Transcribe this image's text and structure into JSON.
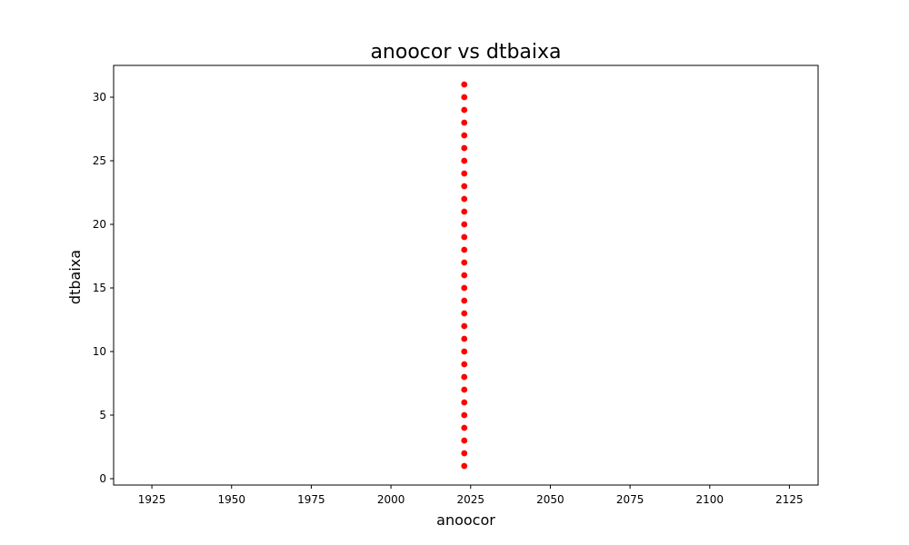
{
  "chart_data": {
    "type": "scatter",
    "title": "anoocor vs dtbaixa",
    "xlabel": "anoocor",
    "ylabel": "dtbaixa",
    "xlim": [
      1913,
      2134
    ],
    "ylim": [
      -0.5,
      32.5
    ],
    "xticks": [
      1925,
      1950,
      1975,
      2000,
      2025,
      2050,
      2075,
      2100,
      2125
    ],
    "yticks": [
      0,
      5,
      10,
      15,
      20,
      25,
      30
    ],
    "grid": false,
    "legend": "none",
    "marker_color": "#ff0000",
    "points": [
      {
        "x": 2023,
        "y": 1
      },
      {
        "x": 2023,
        "y": 2
      },
      {
        "x": 2023,
        "y": 3
      },
      {
        "x": 2023,
        "y": 4
      },
      {
        "x": 2023,
        "y": 5
      },
      {
        "x": 2023,
        "y": 6
      },
      {
        "x": 2023,
        "y": 7
      },
      {
        "x": 2023,
        "y": 8
      },
      {
        "x": 2023,
        "y": 9
      },
      {
        "x": 2023,
        "y": 10
      },
      {
        "x": 2023,
        "y": 11
      },
      {
        "x": 2023,
        "y": 12
      },
      {
        "x": 2023,
        "y": 13
      },
      {
        "x": 2023,
        "y": 14
      },
      {
        "x": 2023,
        "y": 15
      },
      {
        "x": 2023,
        "y": 16
      },
      {
        "x": 2023,
        "y": 17
      },
      {
        "x": 2023,
        "y": 18
      },
      {
        "x": 2023,
        "y": 19
      },
      {
        "x": 2023,
        "y": 20
      },
      {
        "x": 2023,
        "y": 21
      },
      {
        "x": 2023,
        "y": 22
      },
      {
        "x": 2023,
        "y": 23
      },
      {
        "x": 2023,
        "y": 24
      },
      {
        "x": 2023,
        "y": 25
      },
      {
        "x": 2023,
        "y": 26
      },
      {
        "x": 2023,
        "y": 27
      },
      {
        "x": 2023,
        "y": 28
      },
      {
        "x": 2023,
        "y": 29
      },
      {
        "x": 2023,
        "y": 30
      },
      {
        "x": 2023,
        "y": 31
      }
    ]
  }
}
